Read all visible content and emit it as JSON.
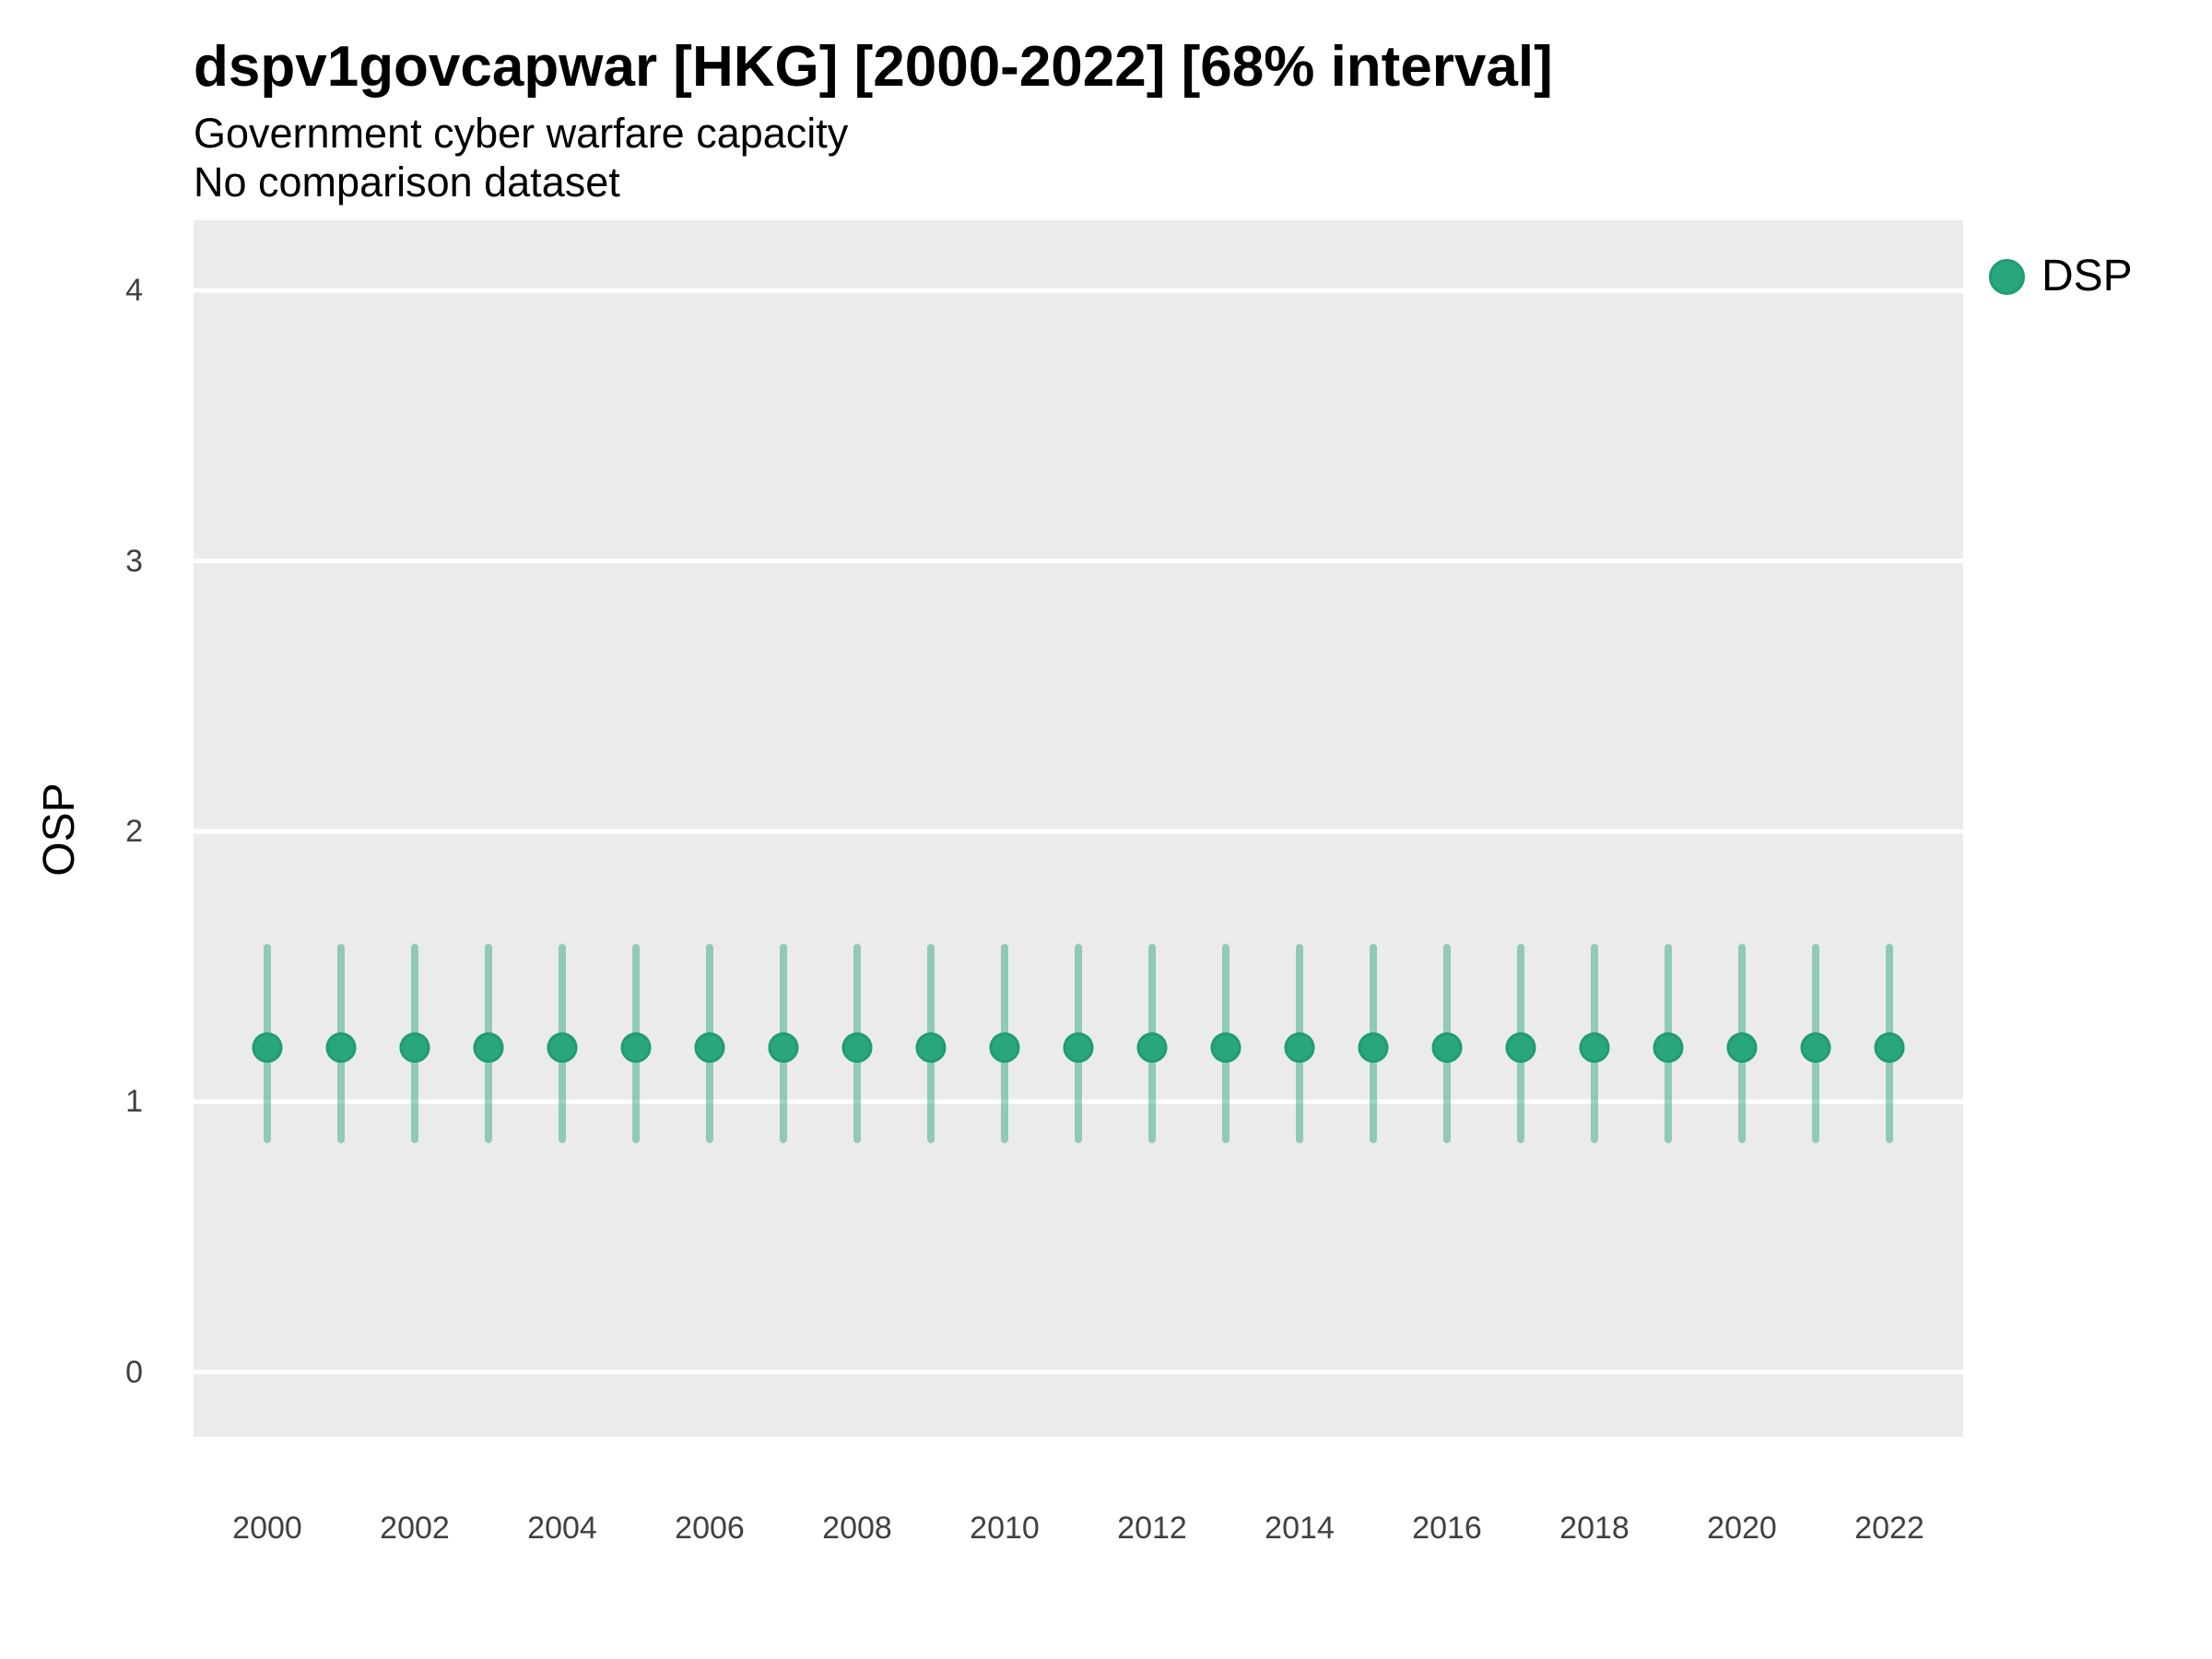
{
  "header": {
    "title": "dspv1govcapwar [HKG] [2000-2022] [68% interval]",
    "subtitle_line1": "Government cyber warfare capacity",
    "subtitle_line2": "No comparison dataset"
  },
  "legend": {
    "label": "DSP",
    "marker": "circle-icon"
  },
  "colors": {
    "panel_background": "#ebebeb",
    "gridline": "#ffffff",
    "point_fill": "#2aa67e",
    "point_stroke": "#1f9c73",
    "interval_line": "rgba(42,166,125,0.48)",
    "title_text": "#000000",
    "tick_text": "#404040"
  },
  "chart_data": {
    "type": "scatter",
    "subtype": "pointrange",
    "title": "dspv1govcapwar [HKG] [2000-2022] [68% interval]",
    "xlabel": "",
    "ylabel": "OSP",
    "x": [
      2000,
      2001,
      2002,
      2003,
      2004,
      2005,
      2006,
      2007,
      2008,
      2009,
      2010,
      2011,
      2012,
      2013,
      2014,
      2015,
      2016,
      2017,
      2018,
      2019,
      2020,
      2021,
      2022
    ],
    "series": [
      {
        "name": "DSP",
        "values": [
          1.2,
          1.2,
          1.2,
          1.2,
          1.2,
          1.2,
          1.2,
          1.2,
          1.2,
          1.2,
          1.2,
          1.2,
          1.2,
          1.2,
          1.2,
          1.2,
          1.2,
          1.2,
          1.2,
          1.2,
          1.2,
          1.2,
          1.2
        ],
        "lower": [
          0.86,
          0.86,
          0.86,
          0.86,
          0.86,
          0.86,
          0.86,
          0.86,
          0.86,
          0.86,
          0.86,
          0.86,
          0.86,
          0.86,
          0.86,
          0.86,
          0.86,
          0.86,
          0.86,
          0.86,
          0.86,
          0.86,
          0.86
        ],
        "upper": [
          1.57,
          1.57,
          1.57,
          1.57,
          1.57,
          1.57,
          1.57,
          1.57,
          1.57,
          1.57,
          1.57,
          1.57,
          1.57,
          1.57,
          1.57,
          1.57,
          1.57,
          1.57,
          1.57,
          1.57,
          1.57,
          1.57,
          1.57
        ]
      }
    ],
    "xticks": [
      2000,
      2002,
      2004,
      2006,
      2008,
      2010,
      2012,
      2014,
      2016,
      2018,
      2020,
      2022
    ],
    "yticks": [
      0,
      1,
      2,
      3,
      4
    ],
    "xlim": [
      1999,
      2023
    ],
    "ylim": [
      -0.24,
      4.26
    ],
    "grid": "horizontal-major-only",
    "legend_position": "right-top",
    "interval_label": "68% interval"
  }
}
